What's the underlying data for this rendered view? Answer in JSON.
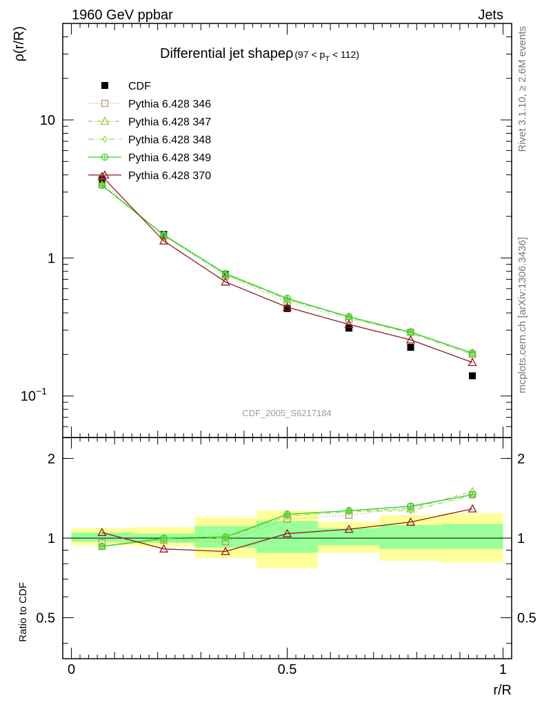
{
  "header": {
    "left": "1960 GeV ppbar",
    "right": "Jets"
  },
  "side_labels": {
    "top": "Rivet 3.1.10, ≥ 2.6M events",
    "bottom": "mcplots.cern.ch [arXiv:1306.3436]"
  },
  "watermark": "CDF_2005_S6217184",
  "chart_data": [
    {
      "type": "line",
      "panel": "main",
      "title": "Differential jet shapeρ",
      "title_suffix": "(97 < p",
      "title_sub": "T",
      "title_end": " < 112)",
      "xlabel": "r/R",
      "ylabel": "ρ(r/R)",
      "xlim": [
        -0.02,
        1.02
      ],
      "ylim": [
        0.05,
        50
      ],
      "yscale": "log",
      "yticks": [
        {
          "value": 10,
          "label": "10"
        },
        {
          "value": 1,
          "label": "1"
        },
        {
          "value": 0.1,
          "label": "10",
          "sup": "−1"
        }
      ],
      "legend_position": "top-left",
      "x": [
        0.071,
        0.214,
        0.357,
        0.5,
        0.643,
        0.786,
        0.929
      ],
      "series": [
        {
          "name": "CDF",
          "color": "#000000",
          "marker": "filled-square",
          "dash": "none",
          "values": [
            3.7,
            1.48,
            0.76,
            0.43,
            0.31,
            0.225,
            0.14
          ]
        },
        {
          "name": "Pythia 6.428 346",
          "color": "#b8926a",
          "marker": "open-square",
          "dash": "1,3",
          "values": [
            3.55,
            1.44,
            0.74,
            0.48,
            0.36,
            0.29,
            0.2
          ]
        },
        {
          "name": "Pythia 6.428 347",
          "color": "#9acd32",
          "marker": "open-triangle",
          "dash": "6,3,1,3",
          "values": [
            3.4,
            1.46,
            0.76,
            0.5,
            0.375,
            0.29,
            0.205
          ]
        },
        {
          "name": "Pythia 6.428 348",
          "color": "#99dd55",
          "marker": "open-diamond",
          "dash": "8,3,1,3",
          "values": [
            3.35,
            1.46,
            0.76,
            0.5,
            0.37,
            0.285,
            0.2
          ]
        },
        {
          "name": "Pythia 6.428 349",
          "color": "#33cc33",
          "marker": "open-circle-cross",
          "dash": "none",
          "values": [
            3.35,
            1.47,
            0.77,
            0.51,
            0.375,
            0.29,
            0.205
          ]
        },
        {
          "name": "Pythia 6.428 370",
          "color": "#8b1a1a",
          "marker": "open-triangle",
          "dash": "none",
          "values": [
            3.9,
            1.33,
            0.67,
            0.44,
            0.33,
            0.255,
            0.175
          ]
        }
      ]
    },
    {
      "type": "line",
      "panel": "ratio",
      "xlabel": "r/R",
      "ylabel": "Ratio to CDF",
      "xlim": [
        -0.02,
        1.02
      ],
      "ylim": [
        0.35,
        2.4
      ],
      "yscale": "log",
      "yticks": [
        {
          "value": 2,
          "label": "2"
        },
        {
          "value": 1,
          "label": "1"
        },
        {
          "value": 0.5,
          "label": "0.5"
        }
      ],
      "xticks": [
        {
          "value": 0,
          "label": "0"
        },
        {
          "value": 0.5,
          "label": "0.5"
        },
        {
          "value": 1,
          "label": "1"
        }
      ],
      "bands": [
        {
          "x0": 0,
          "x1": 0.143,
          "yellow": [
            0.94,
            1.09
          ],
          "green": [
            0.97,
            1.05
          ]
        },
        {
          "x0": 0.143,
          "x1": 0.286,
          "yellow": [
            0.93,
            1.1
          ],
          "green": [
            0.96,
            1.04
          ]
        },
        {
          "x0": 0.286,
          "x1": 0.429,
          "yellow": [
            0.84,
            1.2
          ],
          "green": [
            0.92,
            1.11
          ]
        },
        {
          "x0": 0.429,
          "x1": 0.571,
          "yellow": [
            0.77,
            1.27
          ],
          "green": [
            0.88,
            1.16
          ]
        },
        {
          "x0": 0.571,
          "x1": 0.714,
          "yellow": [
            0.88,
            1.15
          ],
          "green": [
            0.94,
            1.09
          ]
        },
        {
          "x0": 0.714,
          "x1": 0.857,
          "yellow": [
            0.82,
            1.22
          ],
          "green": [
            0.91,
            1.12
          ]
        },
        {
          "x0": 0.857,
          "x1": 1.0,
          "yellow": [
            0.81,
            1.24
          ],
          "green": [
            0.91,
            1.13
          ]
        }
      ],
      "x": [
        0.071,
        0.214,
        0.357,
        0.5,
        0.643,
        0.786,
        0.929
      ],
      "series": [
        {
          "name": "Pythia 6.428 346",
          "color": "#b8926a",
          "marker": "open-square",
          "dash": "1,3",
          "values": [
            0.96,
            0.98,
            0.97,
            1.18,
            1.22,
            1.31,
            1.46
          ]
        },
        {
          "name": "Pythia 6.428 347",
          "color": "#9acd32",
          "marker": "open-triangle",
          "dash": "6,3,1,3",
          "values": [
            0.93,
            0.99,
            1.0,
            1.23,
            1.27,
            1.29,
            1.5
          ]
        },
        {
          "name": "Pythia 6.428 348",
          "color": "#99dd55",
          "marker": "open-diamond",
          "dash": "8,3,1,3",
          "values": [
            0.93,
            0.99,
            1.0,
            1.21,
            1.26,
            1.27,
            1.45
          ]
        },
        {
          "name": "Pythia 6.428 349",
          "color": "#33cc33",
          "marker": "open-circle-cross",
          "dash": "none",
          "values": [
            0.93,
            1.0,
            1.01,
            1.23,
            1.27,
            1.32,
            1.46
          ]
        },
        {
          "name": "Pythia 6.428 370",
          "color": "#8b1a1a",
          "marker": "open-triangle",
          "dash": "none",
          "values": [
            1.05,
            0.91,
            0.89,
            1.04,
            1.08,
            1.15,
            1.29
          ]
        }
      ]
    }
  ]
}
